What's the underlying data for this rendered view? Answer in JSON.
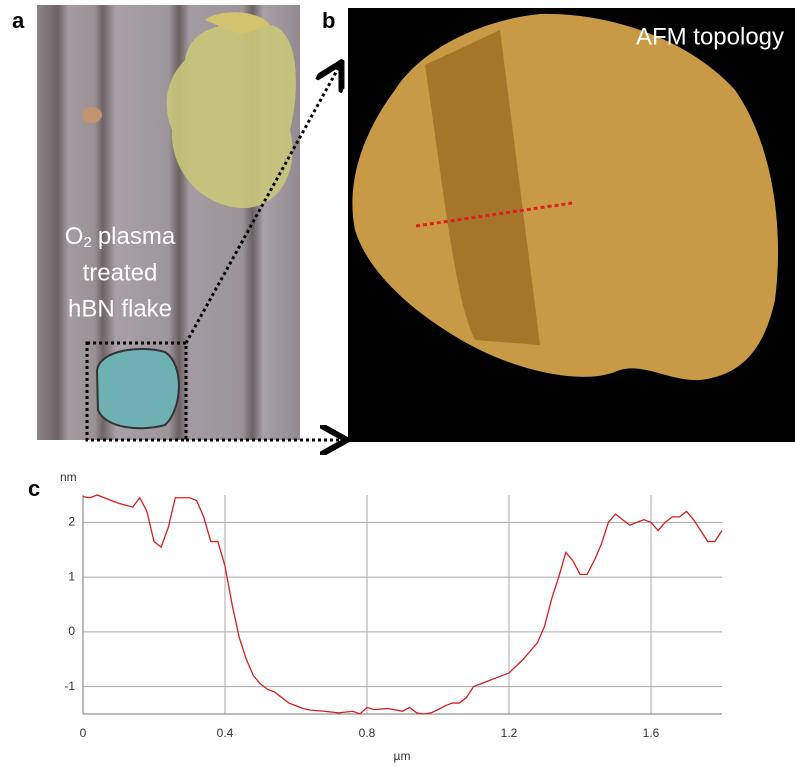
{
  "panels": {
    "a": "a",
    "b": "b",
    "c": "c"
  },
  "optical_note": {
    "line1_chem": "O",
    "line1_subscript": "2",
    "line1_rest": "plasma",
    "line2": "treated",
    "line3": "hBN flake"
  },
  "afm_note": "AFM topology",
  "chart_data": {
    "type": "line",
    "y_unit": "nm",
    "x_label": "µm",
    "x": [
      0,
      0.02,
      0.04,
      0.06,
      0.1,
      0.14,
      0.16,
      0.18,
      0.2,
      0.22,
      0.24,
      0.26,
      0.3,
      0.32,
      0.34,
      0.36,
      0.38,
      0.4,
      0.42,
      0.44,
      0.46,
      0.48,
      0.5,
      0.52,
      0.54,
      0.56,
      0.58,
      0.6,
      0.62,
      0.64,
      0.68,
      0.72,
      0.76,
      0.78,
      0.8,
      0.82,
      0.86,
      0.9,
      0.92,
      0.94,
      0.96,
      0.98,
      1.0,
      1.02,
      1.04,
      1.06,
      1.08,
      1.1,
      1.14,
      1.18,
      1.2,
      1.24,
      1.28,
      1.3,
      1.32,
      1.34,
      1.36,
      1.38,
      1.4,
      1.42,
      1.44,
      1.46,
      1.48,
      1.5,
      1.52,
      1.54,
      1.56,
      1.58,
      1.6,
      1.62,
      1.64,
      1.66,
      1.68,
      1.7,
      1.72,
      1.74,
      1.76,
      1.78,
      1.8
    ],
    "series": [
      {
        "color": "#d42020",
        "values": [
          2.47,
          2.45,
          2.5,
          2.45,
          2.35,
          2.28,
          2.45,
          2.2,
          1.65,
          1.55,
          1.9,
          2.45,
          2.45,
          2.4,
          2.1,
          1.65,
          1.65,
          1.2,
          0.5,
          -0.1,
          -0.5,
          -0.8,
          -0.95,
          -1.05,
          -1.1,
          -1.2,
          -1.3,
          -1.35,
          -1.4,
          -1.43,
          -1.45,
          -1.48,
          -1.45,
          -1.5,
          -1.38,
          -1.42,
          -1.4,
          -1.45,
          -1.38,
          -1.48,
          -1.5,
          -1.48,
          -1.42,
          -1.35,
          -1.3,
          -1.3,
          -1.2,
          -1.0,
          -0.9,
          -0.8,
          -0.75,
          -0.5,
          -0.2,
          0.1,
          0.6,
          1.0,
          1.45,
          1.3,
          1.05,
          1.05,
          1.3,
          1.6,
          2.0,
          2.15,
          2.05,
          1.95,
          2.0,
          2.05,
          2.0,
          1.85,
          2.0,
          2.1,
          2.1,
          2.2,
          2.05,
          1.85,
          1.65,
          1.65,
          1.85
        ]
      }
    ],
    "xlim": [
      0,
      1.8
    ],
    "ylim": [
      -1.5,
      2.5
    ],
    "xticks": [
      0,
      0.4,
      0.8,
      1.2,
      1.6
    ],
    "yticks": [
      -1,
      0,
      1,
      2
    ],
    "grid": true
  }
}
